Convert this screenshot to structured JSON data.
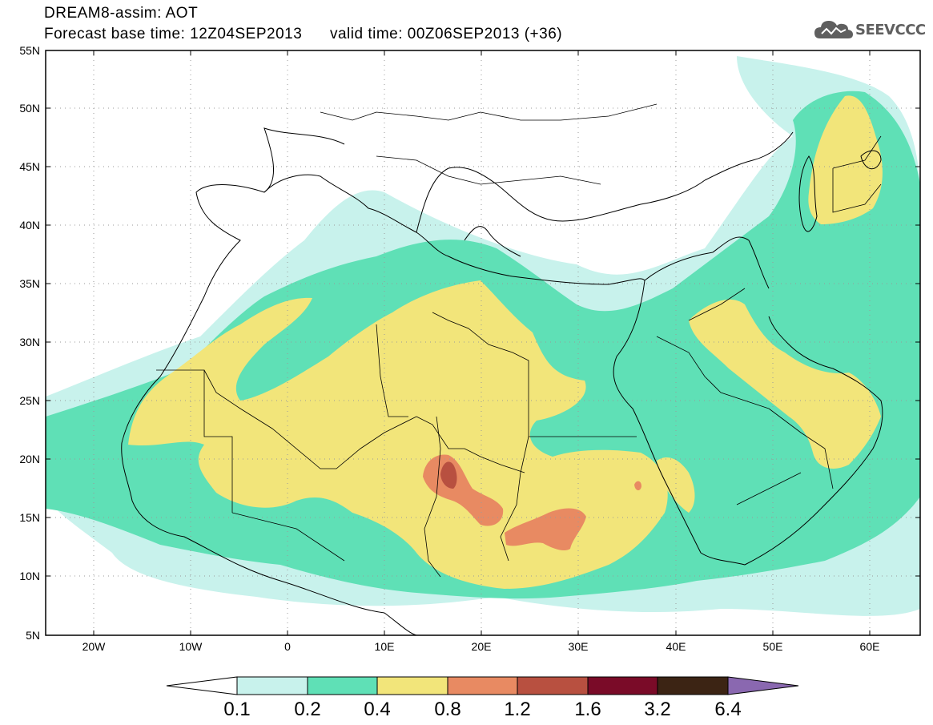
{
  "header": {
    "line1": "DREAM8-assim: AOT",
    "line2_base": "Forecast base time: 12Z04SEP2013",
    "line2_valid": "valid time: 00Z06SEP2013 (+36)"
  },
  "logo": {
    "text": "SEEVCCC",
    "icon": "cloud-icon",
    "color": "#5f5f5f"
  },
  "map": {
    "lat_labels": [
      "55N",
      "50N",
      "45N",
      "40N",
      "35N",
      "30N",
      "25N",
      "20N",
      "15N",
      "10N",
      "5N"
    ],
    "lon_labels": [
      "20W",
      "10W",
      "0",
      "10E",
      "20E",
      "30E",
      "40E",
      "50E",
      "60E"
    ],
    "background": "#ffffff",
    "coastline_color": "#000000"
  },
  "colorbar": {
    "labels": [
      "0.1",
      "0.2",
      "0.4",
      "0.8",
      "1.2",
      "1.6",
      "3.2",
      "6.4"
    ],
    "colors": [
      "#c8f2ec",
      "#5fe0b6",
      "#f2e57a",
      "#e88a62",
      "#b85040",
      "#7a0b28",
      "#3c2414",
      "#8a68b0"
    ],
    "under_color": "#ffffff"
  }
}
